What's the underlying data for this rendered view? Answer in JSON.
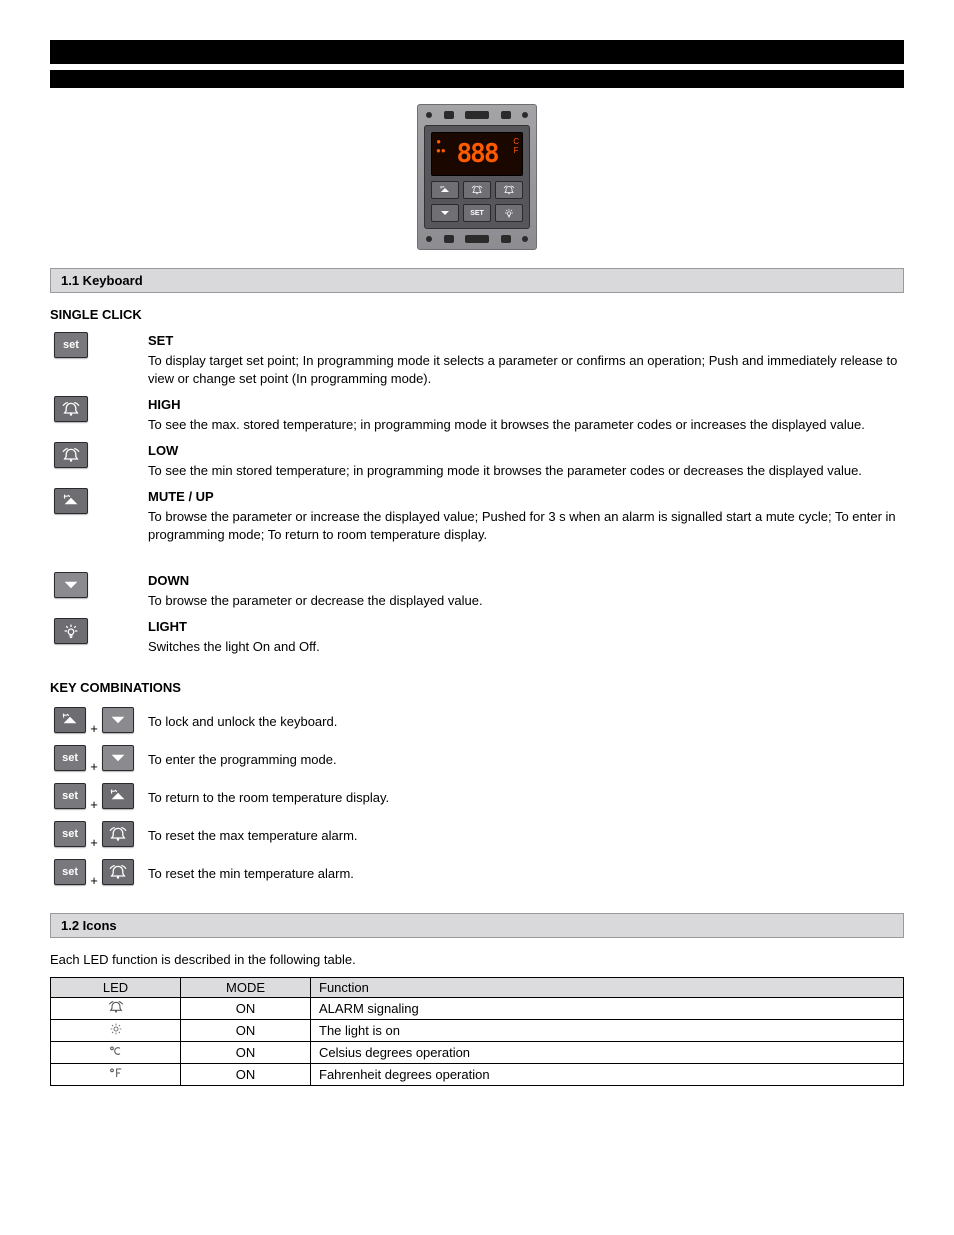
{
  "device": {
    "digits": "888",
    "cf": {
      "c": "C",
      "f": "F"
    },
    "dot_label": "●\n●●"
  },
  "sections": {
    "keyboard": "1.1 Keyboard",
    "icons": "1.2 Icons"
  },
  "single_keys_title": "SINGLE CLICK",
  "combo_keys_title": "KEY COMBINATIONS",
  "keys": {
    "set": {
      "name": "SET",
      "desc": "To display target set point; In programming mode it selects a parameter or confirms an operation; Push and immediately release to view or change set point (In programming mode)."
    },
    "high": {
      "name": "HIGH",
      "desc": "To see the max. stored temperature; in programming mode it browses the parameter codes or increases the displayed value."
    },
    "low": {
      "name": "LOW",
      "desc": "To see the min stored temperature; in programming mode it browses the parameter codes or decreases the displayed value."
    },
    "mute_up": {
      "name": "MUTE / UP",
      "desc": "To browse the parameter or increase the displayed value; Pushed for 3 s when an alarm is signalled start a mute cycle; To enter in programming mode; To return to room temperature display."
    },
    "down": {
      "name": "DOWN",
      "desc": "To browse the parameter or decrease the displayed value."
    },
    "light": {
      "name": "LIGHT",
      "desc": "Switches the light On and Off."
    }
  },
  "combos": {
    "mute_down": "To lock and unlock the keyboard.",
    "set_down": "To enter the programming mode.",
    "set_mute": "To return to the room temperature display.",
    "set_high": "To reset the max temperature alarm.",
    "set_low": "To reset the min temperature alarm."
  },
  "icons_intro": "Each LED function is described in the following table.",
  "led_table": {
    "columns": [
      "LED",
      "MODE",
      "Function"
    ],
    "rows": [
      {
        "icon": "alarm",
        "mode": "ON",
        "fn": "ALARM signaling"
      },
      {
        "icon": "light",
        "mode": "ON",
        "fn": "The light is on"
      },
      {
        "icon": "degc",
        "mode": "ON",
        "fn": "Celsius degrees operation"
      },
      {
        "icon": "degf",
        "mode": "ON",
        "fn": "Fahrenheit degrees operation"
      }
    ]
  },
  "style": {
    "bg": "#ffffff",
    "text": "#000000",
    "bar": "#000000",
    "section_bg": "#d9d9dc",
    "section_border": "#9a9a9e",
    "button_bg": "#6d6d72",
    "button_border": "#2a2a2e",
    "icon_stroke": "#ffffff",
    "lcd_bg": "#1a0800",
    "lcd_fg": "#ff5a00",
    "table_header_bg": "#dcdcde",
    "font_body_pt": 10,
    "font_header_pt": 10
  }
}
